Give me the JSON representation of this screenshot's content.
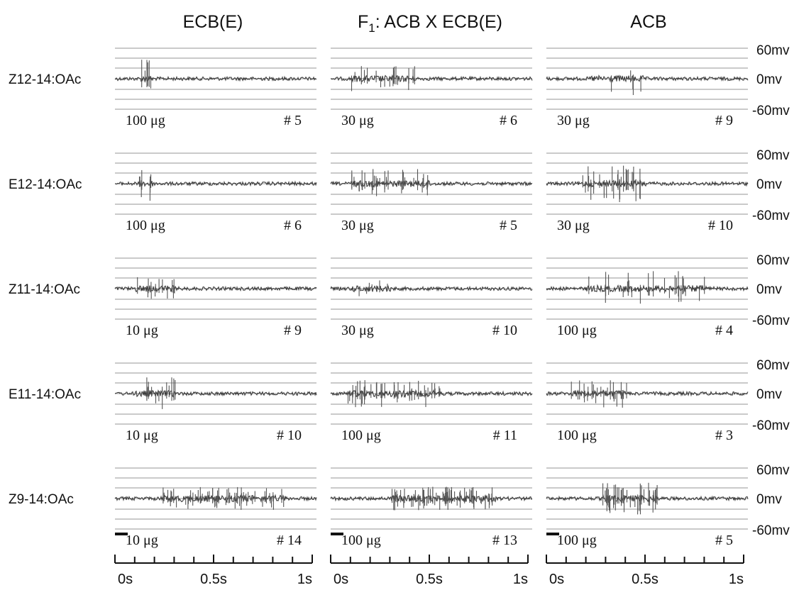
{
  "figure": {
    "columns": [
      "ECB(E)",
      "ACB"
    ],
    "f1_column": {
      "prefix": "F",
      "subscript": "1",
      "rest": ": ACB X ECB(E)"
    },
    "mv_labels": [
      "60mv",
      "0mv",
      "-60mv"
    ],
    "time_ticks": [
      "0s",
      "0.5s",
      "1s"
    ],
    "rows": [
      {
        "label": "Z12-14:OAc",
        "panels": [
          {
            "dose": "100 μg",
            "num": "# 5",
            "burst": [
              0.13,
              0.19
            ],
            "amp": 0.9,
            "dens": 0.55
          },
          {
            "dose": "30 μg",
            "num": "# 6",
            "burst": [
              0.1,
              0.42
            ],
            "amp": 0.6,
            "dens": 0.35
          },
          {
            "dose": "30 μg",
            "num": "# 9",
            "burst": [
              0.22,
              0.48
            ],
            "amp": 0.8,
            "dens": 0.12
          }
        ]
      },
      {
        "label": "E12-14:OAc",
        "panels": [
          {
            "dose": "100 μg",
            "num": "# 6",
            "burst": [
              0.12,
              0.19
            ],
            "amp": 0.9,
            "dens": 0.7
          },
          {
            "dose": "30 μg",
            "num": "# 5",
            "burst": [
              0.1,
              0.5
            ],
            "amp": 0.7,
            "dens": 0.45
          },
          {
            "dose": "30 μg",
            "num": "# 10",
            "burst": [
              0.18,
              0.5
            ],
            "amp": 0.9,
            "dens": 0.55
          }
        ]
      },
      {
        "label": "Z11-14:OAc",
        "panels": [
          {
            "dose": "10 μg",
            "num": "# 9",
            "burst": [
              0.09,
              0.3
            ],
            "amp": 0.55,
            "dens": 0.4
          },
          {
            "dose": "30 μg",
            "num": "# 10",
            "burst": [
              0.1,
              0.3
            ],
            "amp": 0.4,
            "dens": 0.2
          },
          {
            "dose": "100 μg",
            "num": "# 4",
            "burst": [
              0.2,
              0.8
            ],
            "amp": 0.85,
            "dens": 0.25
          }
        ]
      },
      {
        "label": "E11-14:OAc",
        "panels": [
          {
            "dose": "10 μg",
            "num": "# 10",
            "burst": [
              0.1,
              0.3
            ],
            "amp": 0.8,
            "dens": 0.45
          },
          {
            "dose": "100 μg",
            "num": "# 11",
            "burst": [
              0.08,
              0.55
            ],
            "amp": 0.65,
            "dens": 0.5
          },
          {
            "dose": "100 μg",
            "num": "# 3",
            "burst": [
              0.12,
              0.4
            ],
            "amp": 0.7,
            "dens": 0.5
          }
        ]
      },
      {
        "label": "Z9-14:OAc",
        "panels": [
          {
            "dose": "10 μg",
            "num": "# 14",
            "burst": [
              0.22,
              0.85
            ],
            "amp": 0.55,
            "dens": 0.55
          },
          {
            "dose": "100 μg",
            "num": "# 13",
            "burst": [
              0.3,
              0.82
            ],
            "amp": 0.55,
            "dens": 0.85
          },
          {
            "dose": "100 μg",
            "num": "# 5",
            "burst": [
              0.28,
              0.55
            ],
            "amp": 0.75,
            "dens": 0.85
          }
        ]
      }
    ]
  }
}
